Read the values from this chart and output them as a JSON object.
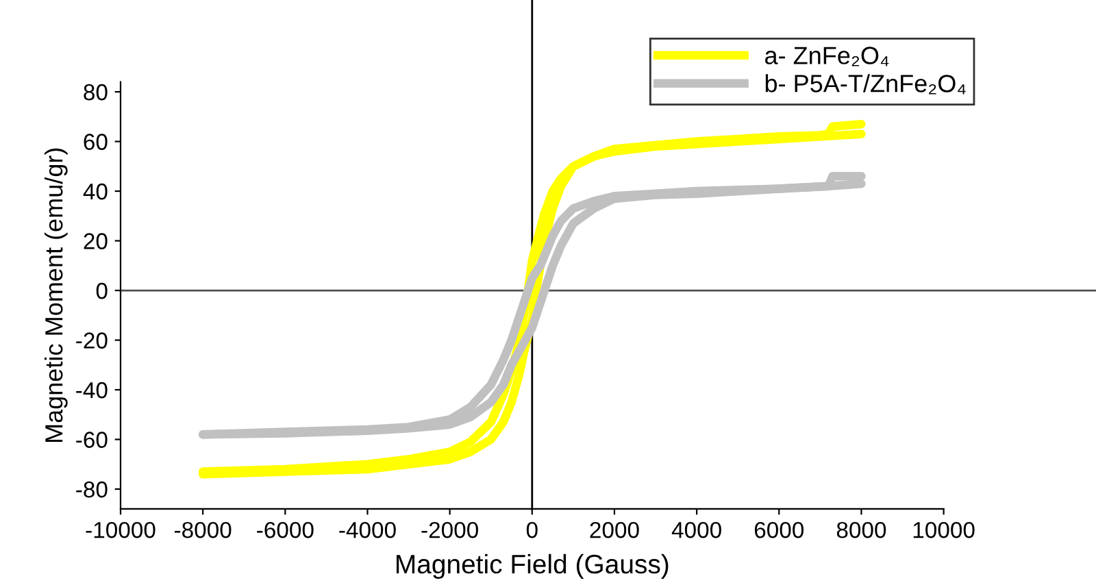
{
  "chart_data": {
    "type": "line",
    "xlabel": "Magnetic Field (Gauss)",
    "ylabel": "Magnetic Moment (emu/gr)",
    "xlim": [
      -10000,
      10000
    ],
    "xticks": [
      -10000,
      -8000,
      -6000,
      -4000,
      -2000,
      0,
      2000,
      4000,
      6000,
      8000,
      10000
    ],
    "ylim": [
      -88,
      84
    ],
    "yticks": [
      -80,
      -60,
      -40,
      -20,
      0,
      20,
      40,
      60,
      80
    ],
    "grid": false,
    "legend": "top right",
    "marker": "none",
    "line_style": "solid",
    "ref_lines": [
      {
        "axis": "x",
        "value": 0,
        "color": "#000000"
      },
      {
        "axis": "y",
        "value": 0,
        "color": "#505050"
      }
    ],
    "series": [
      {
        "name": "a- ZnFe₂O₄",
        "color": "#ffff00",
        "x": [
          8000,
          7000,
          6000,
          5000,
          4000,
          3000,
          2000,
          1500,
          1000,
          700,
          500,
          300,
          200,
          0,
          -100,
          -300,
          -500,
          -700,
          -1000,
          -1500,
          -2000,
          -3000,
          -4000,
          -6000,
          -8000
        ],
        "values": [
          63,
          62,
          61,
          60,
          59,
          58,
          56,
          54,
          50,
          45,
          40,
          31,
          25,
          12,
          0,
          -20,
          -32,
          -42,
          -53,
          -61,
          -65,
          -68,
          -70,
          -72,
          -73
        ]
      },
      {
        "color": "#ffff00",
        "x": [
          -8000,
          -6000,
          -4000,
          -3000,
          -2000,
          -1500,
          -1000,
          -700,
          -500,
          -300,
          -200,
          0,
          100,
          300,
          500,
          700,
          1000,
          1500,
          2000,
          3000,
          4000,
          5000,
          6000,
          7000,
          7200,
          7300,
          8000
        ],
        "values": [
          -74,
          -73,
          -72,
          -70,
          -68,
          -65,
          -60,
          -53,
          -45,
          -33,
          -25,
          -12,
          0,
          20,
          33,
          42,
          50,
          54,
          57,
          58.5,
          60,
          61,
          62,
          62.5,
          63,
          66,
          67
        ]
      },
      {
        "name": "b- P5A-T/ZnFe₂O₄",
        "color": "#c0c0c0",
        "x": [
          8000,
          7200,
          6000,
          4000,
          3000,
          2000,
          1500,
          1000,
          700,
          500,
          200,
          0,
          -200,
          -500,
          -700,
          -1000,
          -1500,
          -2000,
          -3000,
          -4000,
          -6000,
          -8000
        ],
        "values": [
          43,
          42,
          41,
          40,
          39,
          38,
          36,
          33,
          28,
          22,
          10,
          5,
          -5,
          -20,
          -28,
          -38,
          -47,
          -52,
          -55,
          -56,
          -57,
          -58
        ]
      },
      {
        "color": "#c0c0c0",
        "x": [
          -8000,
          -6000,
          -4000,
          -3000,
          -2000,
          -1500,
          -1000,
          -700,
          -500,
          0,
          200,
          500,
          700,
          1000,
          1500,
          2000,
          3000,
          4000,
          6000,
          7200,
          7300,
          8000
        ],
        "values": [
          -58,
          -57.5,
          -56.5,
          -55.5,
          -54,
          -51,
          -45,
          -38,
          -30,
          -15,
          -5,
          10,
          18,
          27,
          33,
          37,
          38.5,
          39,
          41,
          42,
          46,
          46
        ]
      }
    ]
  }
}
